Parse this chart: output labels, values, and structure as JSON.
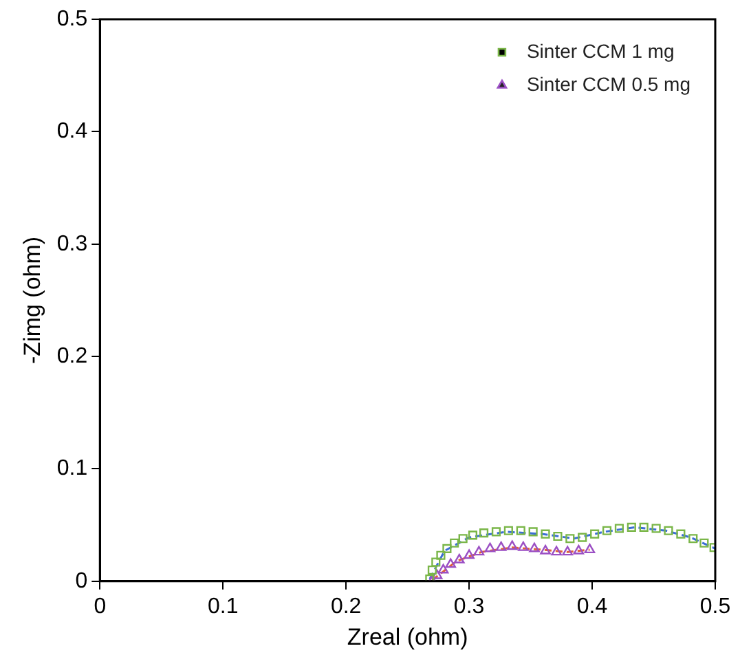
{
  "chart_data": {
    "type": "scatter",
    "xlabel": "Zreal (ohm)",
    "ylabel": "-Zimg (ohm)",
    "xlim": [
      0,
      0.5
    ],
    "ylim": [
      0,
      0.5
    ],
    "xticks": [
      0,
      0.1,
      0.2,
      0.3,
      0.4,
      0.5
    ],
    "yticks": [
      0,
      0.1,
      0.2,
      0.3,
      0.4,
      0.5
    ],
    "grid": false,
    "legend": "top right",
    "series": [
      {
        "name": "Sinter CCM 1 mg",
        "color": "#7ab648",
        "marker": "square",
        "x": [
          0.268,
          0.27,
          0.273,
          0.277,
          0.282,
          0.288,
          0.295,
          0.303,
          0.312,
          0.322,
          0.332,
          0.342,
          0.352,
          0.362,
          0.372,
          0.382,
          0.392,
          0.402,
          0.412,
          0.422,
          0.432,
          0.442,
          0.452,
          0.462,
          0.472,
          0.482,
          0.491,
          0.499
        ],
        "values": [
          0.002,
          0.01,
          0.017,
          0.023,
          0.029,
          0.034,
          0.038,
          0.041,
          0.043,
          0.044,
          0.045,
          0.045,
          0.044,
          0.042,
          0.04,
          0.038,
          0.039,
          0.042,
          0.045,
          0.047,
          0.048,
          0.048,
          0.047,
          0.045,
          0.042,
          0.038,
          0.034,
          0.03
        ]
      },
      {
        "name": "Sinter CCM 0.5 mg",
        "color": "#9b4fc4",
        "marker": "triangle",
        "x": [
          0.27,
          0.274,
          0.279,
          0.285,
          0.292,
          0.3,
          0.308,
          0.317,
          0.326,
          0.335,
          0.344,
          0.353,
          0.362,
          0.371,
          0.38,
          0.389,
          0.398
        ],
        "values": [
          0.0,
          0.005,
          0.01,
          0.015,
          0.019,
          0.023,
          0.026,
          0.029,
          0.03,
          0.031,
          0.03,
          0.029,
          0.027,
          0.026,
          0.026,
          0.027,
          0.028
        ]
      },
      {
        "type": "line",
        "color": "#3b6fd4",
        "line_style": "dashed",
        "marker": "none",
        "x": [
          0.268,
          0.28,
          0.3,
          0.33,
          0.36,
          0.385,
          0.41,
          0.435,
          0.46,
          0.48,
          0.5
        ],
        "values": [
          0.002,
          0.027,
          0.039,
          0.044,
          0.042,
          0.038,
          0.044,
          0.048,
          0.045,
          0.039,
          0.029
        ]
      },
      {
        "type": "line",
        "color": "#e0603a",
        "line_style": "dashed",
        "marker": "none",
        "x": [
          0.27,
          0.29,
          0.31,
          0.335,
          0.36,
          0.38,
          0.398
        ],
        "values": [
          0.001,
          0.018,
          0.026,
          0.03,
          0.028,
          0.026,
          0.028
        ]
      }
    ]
  }
}
